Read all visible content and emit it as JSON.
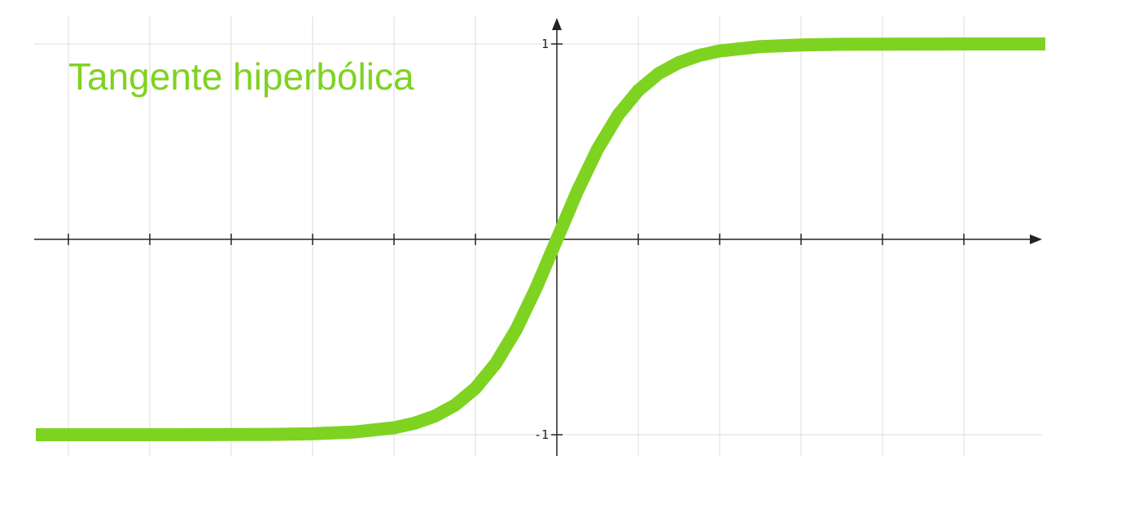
{
  "chart_data": {
    "type": "line",
    "title": "Tangente hiperbólica",
    "xlim": [
      -6.4,
      6.0
    ],
    "ylim": [
      -1,
      1
    ],
    "y_ticks": [
      {
        "value": 1,
        "label": "1"
      },
      {
        "value": -1,
        "label": "-1"
      }
    ],
    "x_gridlines": [
      -6,
      -5,
      -4,
      -3,
      -2,
      -1,
      1,
      2,
      3,
      4,
      5
    ],
    "grid": true,
    "series": [
      {
        "color": "#7ed321",
        "x": [
          -6.4,
          -6.0,
          -5.0,
          -4.0,
          -3.5,
          -3.0,
          -2.5,
          -2.0,
          -1.75,
          -1.5,
          -1.25,
          -1.0,
          -0.75,
          -0.5,
          -0.25,
          0.0,
          0.25,
          0.5,
          0.75,
          1.0,
          1.25,
          1.5,
          1.75,
          2.0,
          2.5,
          3.0,
          3.5,
          4.0,
          5.0,
          6.0
        ],
        "y": [
          -1.0,
          -1.0,
          -0.9999,
          -0.9993,
          -0.9982,
          -0.9951,
          -0.9866,
          -0.964,
          -0.9414,
          -0.9051,
          -0.8483,
          -0.7616,
          -0.6351,
          -0.4621,
          -0.2449,
          0.0,
          0.2449,
          0.4621,
          0.6351,
          0.7616,
          0.8483,
          0.9051,
          0.9414,
          0.964,
          0.9866,
          0.9951,
          0.9982,
          0.9993,
          0.9999,
          1.0
        ]
      }
    ]
  },
  "colors": {
    "curve": "#7ed321",
    "title": "#7ed321",
    "grid": "#dddddd",
    "axis": "#222222"
  }
}
